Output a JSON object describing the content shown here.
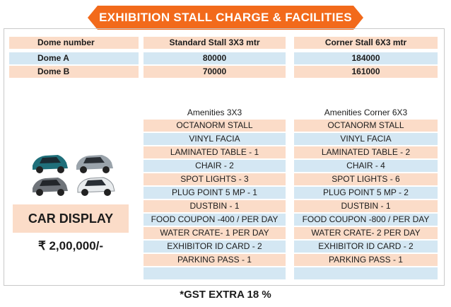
{
  "title": "EXHIBITION STALL CHARGE & FACILITIES",
  "pricing": {
    "headers": [
      "Dome number",
      "Standard Stall 3X3 mtr",
      "Corner Stall 6X3 mtr"
    ],
    "rows": [
      [
        "Dome A",
        "80000",
        "184000"
      ],
      [
        "Dome B",
        "70000",
        "161000"
      ]
    ]
  },
  "amenities": {
    "standard_title": "Amenities 3X3",
    "corner_title": "Amenities Corner 6X3",
    "standard": [
      "OCTANORM STALL",
      "VINYL FACIA",
      "LAMINATED TABLE - 1",
      "CHAIR - 2",
      "SPOT LIGHTS - 3",
      "PLUG POINT 5 MP - 1",
      "DUSTBIN - 1",
      "FOOD COUPON -400 / PER DAY",
      "WATER CRATE- 1 PER DAY",
      "EXHIBITOR ID CARD - 2",
      "PARKING PASS - 1",
      ""
    ],
    "corner": [
      "OCTANORM STALL",
      "VINYL FACIA",
      "LAMINATED TABLE - 2",
      "CHAIR - 4",
      "SPOT LIGHTS - 6",
      "PLUG POINT 5 MP - 2",
      "DUSTBIN - 1",
      "FOOD COUPON -800 / PER DAY",
      "WATER CRATE- 2 PER DAY",
      "EXHIBITOR ID CARD - 2",
      "PARKING PASS - 1",
      ""
    ]
  },
  "car_display": {
    "label": "CAR DISPLAY",
    "price": "₹ 2,00,000/-"
  },
  "footer": "*GST EXTRA 18 %",
  "colors": {
    "banner": "#f26a1b",
    "peach": "#fbdcc8",
    "blue": "#d4e7f3"
  }
}
